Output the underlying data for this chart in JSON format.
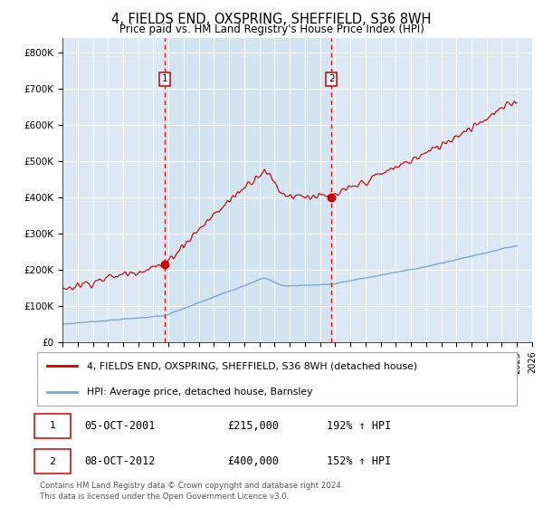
{
  "title": "4, FIELDS END, OXSPRING, SHEFFIELD, S36 8WH",
  "subtitle": "Price paid vs. HM Land Registry's House Price Index (HPI)",
  "title_fontsize": 10.5,
  "subtitle_fontsize": 8.5,
  "background_color": "#ffffff",
  "plot_bg_color": "#dce9f5",
  "grid_color": "#ffffff",
  "red_line_label": "4, FIELDS END, OXSPRING, SHEFFIELD, S36 8WH (detached house)",
  "blue_line_label": "HPI: Average price, detached house, Barnsley",
  "marker1_date_idx": 81,
  "marker1_label": "1",
  "marker1_price": 215000,
  "marker1_text": "05-OCT-2001",
  "marker1_pct": "192% ↑ HPI",
  "marker2_date_idx": 213,
  "marker2_label": "2",
  "marker2_price": 400000,
  "marker2_text": "08-OCT-2012",
  "marker2_pct": "152% ↑ HPI",
  "vline_color": "#ff0000",
  "marker_color": "#cc0000",
  "red_line_color": "#cc0000",
  "blue_line_color": "#7aa8d2",
  "shade_alpha": 0.45,
  "footer": "Contains HM Land Registry data © Crown copyright and database right 2024.\nThis data is licensed under the Open Government Licence v3.0.",
  "ylim": [
    0,
    840000
  ],
  "yticks": [
    0,
    100000,
    200000,
    300000,
    400000,
    500000,
    600000,
    700000,
    800000
  ],
  "ytick_labels": [
    "£0",
    "£100K",
    "£200K",
    "£300K",
    "£400K",
    "£500K",
    "£600K",
    "£700K",
    "£800K"
  ]
}
